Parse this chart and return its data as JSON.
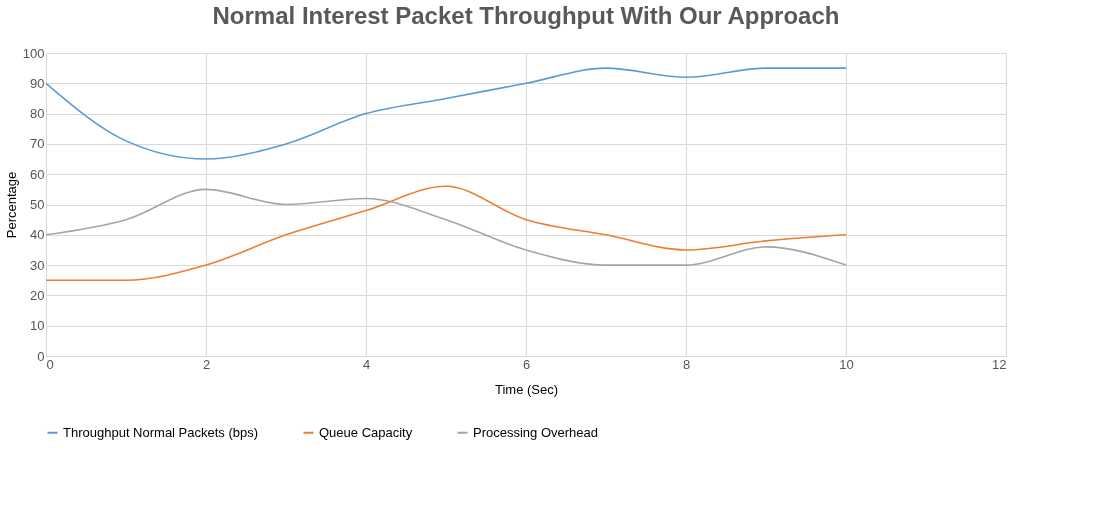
{
  "chart_data": {
    "type": "line",
    "title": "Normal Interest Packet Throughput With Our Approach",
    "xlabel": "Time (Sec)",
    "ylabel": "Percentage",
    "x": [
      0,
      1,
      2,
      3,
      4,
      5,
      6,
      7,
      8,
      9,
      10
    ],
    "series": [
      {
        "name": "Throughput Normal Packets (bps)",
        "color": "#5b9bd5",
        "values": [
          90,
          71,
          65,
          70,
          80,
          85,
          90,
          95,
          92,
          95,
          95
        ]
      },
      {
        "name": "Queue Capacity",
        "color": "#ed7d31",
        "values": [
          25,
          25,
          30,
          40,
          48,
          56,
          45,
          40,
          35,
          38,
          40
        ]
      },
      {
        "name": "Processing Overhead",
        "color": "#a5a5a5",
        "values": [
          40,
          45,
          55,
          50,
          52,
          45,
          35,
          30,
          30,
          36,
          30
        ]
      }
    ],
    "xlim": [
      0,
      12
    ],
    "xticks": [
      0,
      2,
      4,
      6,
      8,
      10,
      12
    ],
    "ylim": [
      0,
      100
    ],
    "yticks": [
      0,
      10,
      20,
      30,
      40,
      50,
      60,
      70,
      80,
      90,
      100
    ],
    "grid": true,
    "legend": "bottom",
    "marker": "none",
    "line_style": "solid"
  }
}
